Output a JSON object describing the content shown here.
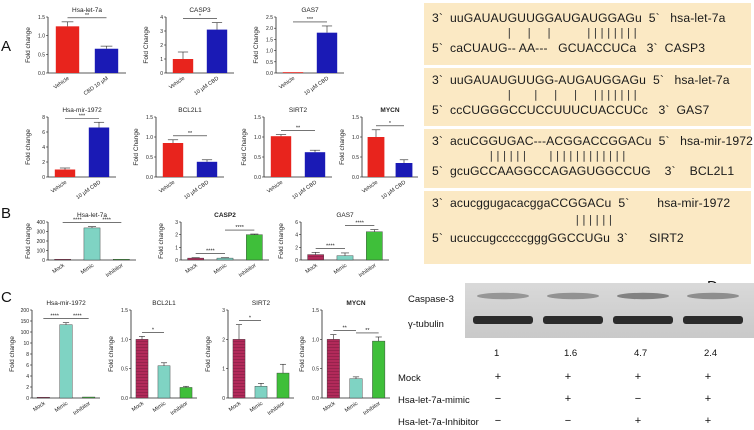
{
  "panels": {
    "A": "A",
    "B": "B",
    "C": "C",
    "D": "D"
  },
  "charts_A": [
    {
      "id": "a1",
      "title": "Hsa-let-7a",
      "ylabel": "Fold change",
      "type": "bar",
      "categories": [
        "Vehicle",
        "CBD 10 µM"
      ],
      "values": [
        1.25,
        0.65
      ],
      "errors": [
        0.12,
        0.07
      ],
      "colors": [
        "#e8241d",
        "#1a1ab5"
      ],
      "ymax": 1.5,
      "yticks": [
        "0.0",
        "0.5",
        "1.0",
        "1.5"
      ],
      "sig": [
        "**"
      ]
    },
    {
      "id": "a2",
      "title": "CASP3",
      "ylabel": "Fold Change",
      "type": "bar",
      "categories": [
        "Vehicle",
        "10 µM CBD"
      ],
      "values": [
        1.0,
        3.1
      ],
      "errors": [
        0.5,
        0.5
      ],
      "colors": [
        "#e8241d",
        "#1a1ab5"
      ],
      "ymax": 4,
      "yticks": [
        "0",
        "1",
        "2",
        "3",
        "4"
      ],
      "sig": [
        "*"
      ]
    },
    {
      "id": "a3",
      "title": "GAS7",
      "ylabel": "Fold Change",
      "type": "bar",
      "categories": [
        "Vehicle",
        "10 µM CBD"
      ],
      "values": [
        0.0,
        1.8
      ],
      "errors": [
        0.0,
        0.3
      ],
      "colors": [
        "#e8241d",
        "#1a1ab5"
      ],
      "ymax": 2.5,
      "yticks": [
        "0.0",
        "0.5",
        "1.0",
        "1.5",
        "2.0",
        "2.5"
      ],
      "sig": [
        "***"
      ]
    },
    {
      "id": "a4",
      "title": "Hsa-mir-1972",
      "ylabel": "Fold change",
      "type": "bar",
      "categories": [
        "Vehicle",
        "10 µM CBD"
      ],
      "values": [
        1.0,
        6.6
      ],
      "errors": [
        0.2,
        0.7
      ],
      "colors": [
        "#e8241d",
        "#1a1ab5"
      ],
      "ymax": 8,
      "yticks": [
        "0",
        "2",
        "4",
        "6",
        "8"
      ],
      "sig": [
        "***"
      ]
    },
    {
      "id": "a5",
      "title": "BCL2L1",
      "ylabel": "Fold Change",
      "type": "bar",
      "categories": [
        "Vehicle",
        "10 µM CBD"
      ],
      "values": [
        0.85,
        0.38
      ],
      "errors": [
        0.08,
        0.05
      ],
      "colors": [
        "#e8241d",
        "#1a1ab5"
      ],
      "ymax": 1.5,
      "yticks": [
        "0.0",
        "0.5",
        "1.0",
        "1.5"
      ],
      "sig": [
        "**"
      ]
    },
    {
      "id": "a6",
      "title": "SIRT2",
      "ylabel": "Fold Change",
      "type": "bar",
      "categories": [
        "Vehicle",
        "10 µM CBD"
      ],
      "values": [
        1.02,
        0.62
      ],
      "errors": [
        0.04,
        0.05
      ],
      "colors": [
        "#e8241d",
        "#1a1ab5"
      ],
      "ymax": 1.5,
      "yticks": [
        "0.0",
        "0.5",
        "1.0",
        "1.5"
      ],
      "sig": [
        "**"
      ]
    },
    {
      "id": "a7",
      "title": "MYCN",
      "ylabel": "Fold change",
      "type": "bar",
      "categories": [
        "Vehicle",
        "10 µM CBD"
      ],
      "values": [
        1.0,
        0.35
      ],
      "errors": [
        0.18,
        0.08
      ],
      "colors": [
        "#e8241d",
        "#1a1ab5"
      ],
      "ymax": 1.5,
      "yticks": [
        "0.0",
        "0.5",
        "1.0",
        "1.5"
      ],
      "sig": [
        "*"
      ]
    }
  ],
  "charts_B": [
    {
      "id": "b1",
      "title": "Hsa-let-7a",
      "ylabel": "Fold change",
      "categories": [
        "Mock",
        "Mimic",
        "Inhibitor"
      ],
      "values": [
        0.0,
        380,
        1.0
      ],
      "errors": [
        0,
        15,
        0
      ],
      "ymax": 450,
      "yticks": [
        "0",
        "100",
        "200",
        "300",
        "400"
      ],
      "sig": [
        "****",
        "****"
      ]
    },
    {
      "id": "b2",
      "title": "CASP2",
      "ylabel": "Fold change",
      "categories": [
        "Mock",
        "Mimic",
        "Inhibitor"
      ],
      "values": [
        0.15,
        0.15,
        2.0
      ],
      "errors": [
        0.03,
        0.03,
        0.05
      ],
      "ymax": 3,
      "yticks": [
        "0",
        "1",
        "2",
        "3"
      ],
      "sig": [
        "****",
        "****"
      ]
    },
    {
      "id": "b3",
      "title": "GAS7",
      "ylabel": "Fold change",
      "categories": [
        "Mock",
        "Mimic",
        "Inhibitor"
      ],
      "values": [
        1.0,
        0.8,
        5.2
      ],
      "errors": [
        0.4,
        0.5,
        0.4
      ],
      "ymax": 7,
      "yticks": [
        "0",
        "2",
        "4",
        "6"
      ],
      "sig": [
        "****",
        "****"
      ]
    }
  ],
  "charts_C": [
    {
      "id": "c1",
      "title": "Hsa-mir-1972",
      "ylabel": "Fold change",
      "categories": [
        "Mock",
        "Mimic",
        "Inhibitor"
      ],
      "values": [
        1.0,
        150,
        2.0
      ],
      "errors": [
        0,
        4,
        0
      ],
      "ymax": 180,
      "yticks": [
        "0",
        "2",
        "4",
        "6",
        "8",
        "10",
        "100",
        "150",
        "200"
      ],
      "sig": [
        "****",
        "****"
      ]
    },
    {
      "id": "c2",
      "title": "BCL2L1",
      "ylabel": "Fold change",
      "categories": [
        "Mock",
        "Mimic",
        "Inhibitor"
      ],
      "values": [
        1.0,
        0.55,
        0.18
      ],
      "errors": [
        0.05,
        0.05,
        0.02
      ],
      "ymax": 1.5,
      "yticks": [
        "0.0",
        "0.5",
        "1.0",
        "1.5"
      ],
      "sig": [
        "*"
      ]
    },
    {
      "id": "c3",
      "title": "SIRT2",
      "ylabel": "Fold change",
      "categories": [
        "Mock",
        "Mimic",
        "Inhibitor"
      ],
      "values": [
        2.0,
        0.4,
        0.85
      ],
      "errors": [
        0.5,
        0.1,
        0.3
      ],
      "ymax": 3,
      "yticks": [
        "0",
        "1",
        "2",
        "3"
      ],
      "sig": [
        "*"
      ]
    },
    {
      "id": "c4",
      "title": "MYCN",
      "ylabel": "Fold change",
      "categories": [
        "Mock",
        "Mimic",
        "Inhibitor"
      ],
      "values": [
        1.0,
        0.33,
        0.97
      ],
      "errors": [
        0.08,
        0.03,
        0.07
      ],
      "ymax": 1.5,
      "yticks": [
        "0.0",
        "0.5",
        "1.0",
        "1.5"
      ],
      "sig": [
        "**",
        "**"
      ]
    }
  ],
  "alignment": {
    "blocks": [
      {
        "top": "3`  uuGAUAUGUUGGAUGAUGGAGu  5`   hsa-let-7a",
        "mid": "|  |  |     ||||||||",
        "bottom": "5`  caCUAUG-- AA---   GCUACCUCa   3`  CASP3"
      },
      {
        "top": "3`  uuGAUAUGUUGG-AUGAUGGAGu  5`   hsa-let-7a",
        "mid": "|   |  |  |  |||||||",
        "bottom": "5`  ccCUGGGCCUCCUUUCUACCUCc   3`  GAS7"
      },
      {
        "top": "3`  acuCGGUGAC---ACGGACCGGACu  5`   hsa-mir-1972",
        "mid": "||||||   ||||||||||||",
        "bottom": "5`  gcuGCCAAGGCCAGAGUGGCCUG    3`    BCL2L1"
      },
      {
        "top": "3`  acucggugacacggaCCGGACu  5`        hsa-mir-1972",
        "mid": "||||||",
        "bottom": "5`  ucuccugcccccgggGGCCUGu  3`      SIRT2"
      }
    ]
  },
  "western": {
    "bands": [
      "Caspase-3",
      "γ-tubulin"
    ],
    "quant": [
      "1",
      "1.6",
      "4.7",
      "2.4"
    ],
    "rows": [
      {
        "label": "Mock",
        "signs": [
          "+",
          "+",
          "+",
          "+"
        ]
      },
      {
        "label": "Hsa-let-7a-mimic",
        "signs": [
          "−",
          "+",
          "−",
          "+"
        ]
      },
      {
        "label": "Hsa-let-7a-Inhibitor",
        "signs": [
          "−",
          "−",
          "+",
          "+"
        ]
      }
    ]
  },
  "colors": {
    "red": "#e8241d",
    "blue": "#1a1ab5",
    "mock": "#b22a5a",
    "mimic": "#7fd3c3",
    "inhibitor": "#3fbf3a",
    "panel_bg": "#fbe9c4"
  }
}
